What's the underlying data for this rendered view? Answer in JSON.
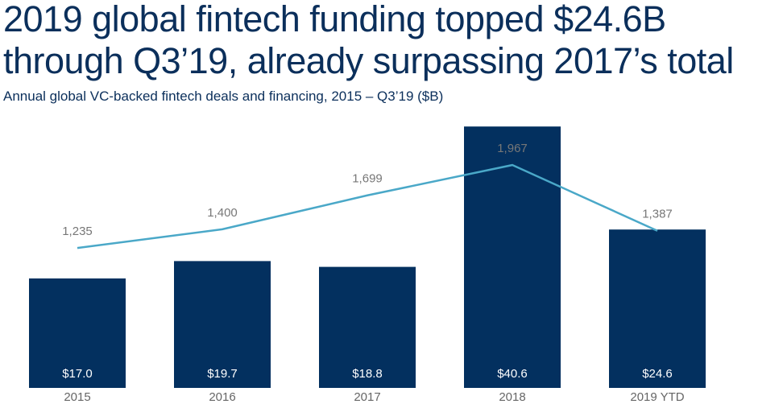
{
  "chart_data": {
    "type": "bar-line",
    "title": "2019 global fintech funding topped $24.6B through Q3’19, already surpassing 2017’s total",
    "subtitle": "Annual global VC-backed fintech deals and financing, 2015 – Q3’19 ($B)",
    "categories": [
      "2015",
      "2016",
      "2017",
      "2018",
      "2019 YTD"
    ],
    "ylim": [
      0,
      44
    ],
    "y2lim": [
      0,
      2500
    ],
    "series": [
      {
        "type": "bar",
        "color": "#03305f",
        "values": [
          17.0,
          19.7,
          18.8,
          40.6,
          24.6
        ],
        "value_labels": [
          "$17.0",
          "$19.7",
          "$18.8",
          "$40.6",
          "$24.6"
        ]
      },
      {
        "type": "line",
        "axis": "y2",
        "color": "#4aa8c8",
        "values": [
          1235,
          1400,
          1699,
          1967,
          1387
        ],
        "value_labels": [
          "1,235",
          "1,400",
          "1,699",
          "1,967",
          "1,387"
        ]
      }
    ]
  }
}
